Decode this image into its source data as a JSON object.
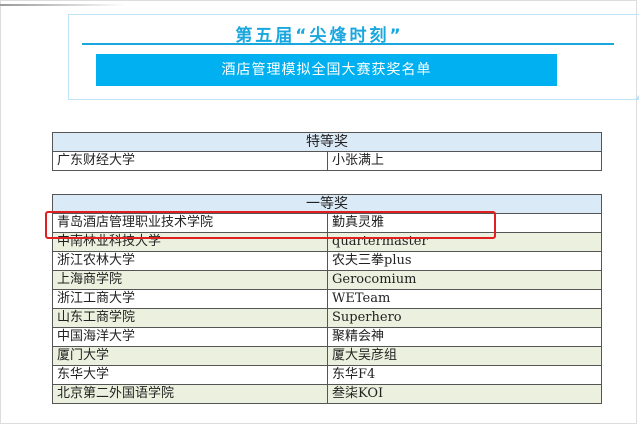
{
  "header": {
    "title": "第五届“尖烽时刻”",
    "subtitle": "酒店管理模拟全国大赛获奖名单"
  },
  "special": {
    "heading": "特等奖",
    "rows": [
      {
        "school": "广东财经大学",
        "team": "小张满上"
      }
    ]
  },
  "first": {
    "heading": "一等奖",
    "rows": [
      {
        "school": "青岛酒店管理职业技术学院",
        "team": "勤真灵雅"
      },
      {
        "school": "中南林业科技大学",
        "team": "quartermaster"
      },
      {
        "school": "浙江农林大学",
        "team": "农夫三拳plus"
      },
      {
        "school": "上海商学院",
        "team": "Gerocomium"
      },
      {
        "school": "浙江工商大学",
        "team": "WETeam"
      },
      {
        "school": "山东工商学院",
        "team": "Superhero"
      },
      {
        "school": "中国海洋大学",
        "team": "聚精会神"
      },
      {
        "school": "厦门大学",
        "team": "厦大吴彦组"
      },
      {
        "school": "东华大学",
        "team": "东华F4"
      },
      {
        "school": "北京第二外国语学院",
        "team": "叁柒KOI"
      }
    ]
  },
  "colors": {
    "accent": "#00b0f0",
    "highlight": "#e02020",
    "header_row": "#dbeaf7",
    "alt_row": "#ebf1de"
  }
}
